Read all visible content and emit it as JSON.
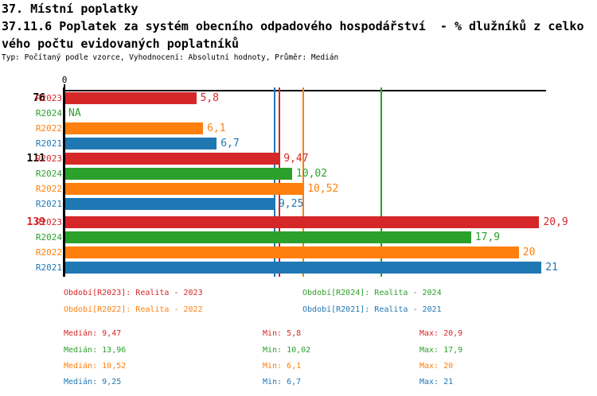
{
  "header": {
    "title_line1": "37. Místní poplatky",
    "title_line2": "37.11.6 Poplatek za systém obecního odpadového hospodářství  - % dlužníků z celko",
    "title_line3": "vého počtu evidovaných poplatníků",
    "subtitle": "Typ: Počítaný podle vzorce, Vyhodnocení: Absolutní hodnoty, Průměr: Medián"
  },
  "colors": {
    "R2023": "#d62728",
    "R2024": "#2ca02c",
    "R2022": "#ff7f0e",
    "R2021": "#1f77b4",
    "axis": "#000000"
  },
  "chart_data": {
    "type": "bar",
    "orientation": "horizontal",
    "x_axis": {
      "tick_labels": [
        "0"
      ],
      "min": 0,
      "max": 21.2,
      "grid": false
    },
    "series_order": [
      "R2023",
      "R2024",
      "R2022",
      "R2021"
    ],
    "groups": [
      {
        "label": "76",
        "label_color": "#000000",
        "bars": [
          {
            "series": "R2023",
            "value": 5.8,
            "display": "5,8"
          },
          {
            "series": "R2024",
            "value": null,
            "display": "NA"
          },
          {
            "series": "R2022",
            "value": 6.1,
            "display": "6,1"
          },
          {
            "series": "R2021",
            "value": 6.7,
            "display": "6,7"
          }
        ]
      },
      {
        "label": "111",
        "label_color": "#000000",
        "bars": [
          {
            "series": "R2023",
            "value": 9.47,
            "display": "9,47"
          },
          {
            "series": "R2024",
            "value": 10.02,
            "display": "10,02"
          },
          {
            "series": "R2022",
            "value": 10.52,
            "display": "10,52"
          },
          {
            "series": "R2021",
            "value": 9.25,
            "display": "9,25"
          }
        ]
      },
      {
        "label": "139",
        "label_color": "#d62728",
        "bars": [
          {
            "series": "R2023",
            "value": 20.9,
            "display": "20,9"
          },
          {
            "series": "R2024",
            "value": 17.9,
            "display": "17,9"
          },
          {
            "series": "R2022",
            "value": 20,
            "display": "20"
          },
          {
            "series": "R2021",
            "value": 21,
            "display": "21"
          }
        ]
      }
    ],
    "median_lines": [
      {
        "series": "R2021",
        "value": 9.25
      },
      {
        "series": "R2023",
        "value": 9.47
      },
      {
        "series": "R2022",
        "value": 10.52
      },
      {
        "series": "R2024",
        "value": 13.96
      }
    ]
  },
  "legend": {
    "items": [
      {
        "series": "R2023",
        "label": "Období[R2023]: Realita - 2023"
      },
      {
        "series": "R2024",
        "label": "Období[R2024]: Realita - 2024"
      },
      {
        "series": "R2022",
        "label": "Období[R2022]: Realita - 2022"
      },
      {
        "series": "R2021",
        "label": "Období[R2021]: Realita - 2021"
      }
    ]
  },
  "stats": {
    "rows": [
      {
        "series": "R2023",
        "median": "Medián: 9,47",
        "min": "Min: 5,8",
        "max": "Max: 20,9"
      },
      {
        "series": "R2024",
        "median": "Medián: 13,96",
        "min": "Min: 10,02",
        "max": "Max: 17,9"
      },
      {
        "series": "R2022",
        "median": "Medián: 10,52",
        "min": "Min: 6,1",
        "max": "Max: 20"
      },
      {
        "series": "R2021",
        "median": "Medián: 9,25",
        "min": "Min: 6,7",
        "max": "Max: 21"
      }
    ]
  }
}
